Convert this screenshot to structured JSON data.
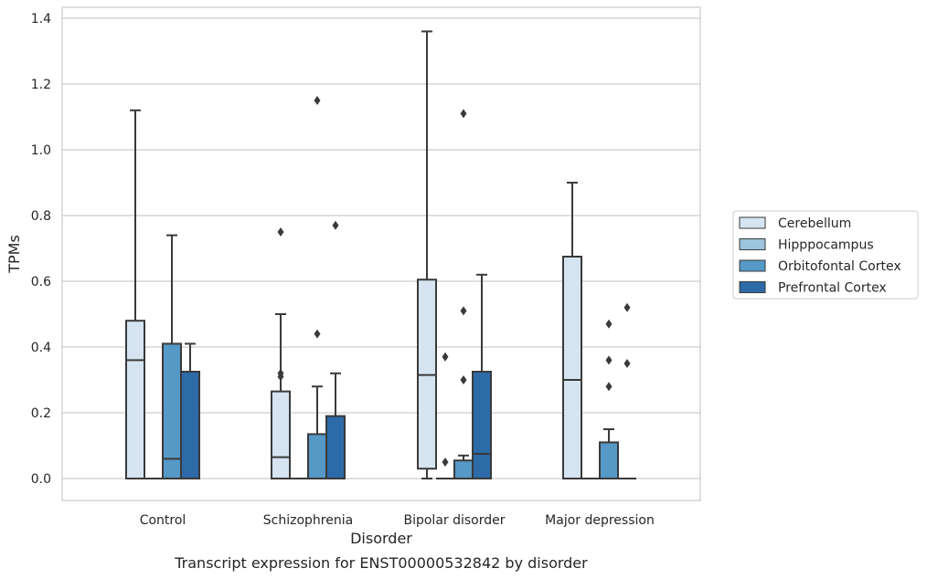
{
  "caption": "Transcript expression for ENST00000532842 by disorder",
  "chart_data": {
    "type": "box",
    "xlabel": "Disorder",
    "ylabel": "TPMs",
    "ylim": [
      -0.065,
      1.44
    ],
    "yticks": [
      0.0,
      0.2,
      0.4,
      0.6,
      0.8,
      1.0,
      1.2,
      1.4
    ],
    "ytick_labels": [
      "0.0",
      "0.2",
      "0.4",
      "0.6",
      "0.8",
      "1.0",
      "1.2",
      "1.4"
    ],
    "grid": true,
    "legend_position": "right",
    "categories": [
      "Control",
      "Schizophrenia",
      "Bipolar disorder",
      "Major depression"
    ],
    "series": [
      {
        "name": "Cerebellum",
        "color": "#d6e4f1",
        "boxes": [
          {
            "whislo": 0.0,
            "q1": 0.0,
            "med": 0.36,
            "q3": 0.48,
            "whishi": 1.12,
            "fliers": []
          },
          {
            "whislo": 0.0,
            "q1": 0.0,
            "med": 0.065,
            "q3": 0.265,
            "whishi": 0.5,
            "fliers": [
              0.75,
              0.32,
              0.31
            ]
          },
          {
            "whislo": 0.0,
            "q1": 0.03,
            "med": 0.315,
            "q3": 0.605,
            "whishi": 1.36,
            "fliers": []
          },
          {
            "whislo": 0.0,
            "q1": 0.0,
            "med": 0.3,
            "q3": 0.675,
            "whishi": 0.9,
            "fliers": []
          }
        ]
      },
      {
        "name": "Hipppocampus",
        "color": "#9cc4dd",
        "boxes": [
          {
            "whislo": 0.0,
            "q1": 0.0,
            "med": 0.0,
            "q3": 0.0,
            "whishi": 0.0,
            "fliers": []
          },
          {
            "whislo": 0.0,
            "q1": 0.0,
            "med": 0.0,
            "q3": 0.0,
            "whishi": 0.0,
            "fliers": []
          },
          {
            "whislo": 0.0,
            "q1": 0.0,
            "med": 0.0,
            "q3": 0.0,
            "whishi": 0.0,
            "fliers": [
              0.05,
              0.37
            ]
          },
          {
            "whislo": 0.0,
            "q1": 0.0,
            "med": 0.0,
            "q3": 0.0,
            "whishi": 0.0,
            "fliers": []
          }
        ]
      },
      {
        "name": "Orbitofontal Cortex",
        "color": "#5698c6",
        "boxes": [
          {
            "whislo": 0.0,
            "q1": 0.0,
            "med": 0.06,
            "q3": 0.41,
            "whishi": 0.74,
            "fliers": []
          },
          {
            "whislo": 0.0,
            "q1": 0.0,
            "med": 0.0,
            "q3": 0.135,
            "whishi": 0.28,
            "fliers": [
              1.15,
              0.44
            ]
          },
          {
            "whislo": 0.0,
            "q1": 0.0,
            "med": 0.0,
            "q3": 0.055,
            "whishi": 0.07,
            "fliers": [
              1.11,
              0.51,
              0.3
            ]
          },
          {
            "whislo": 0.0,
            "q1": 0.0,
            "med": 0.0,
            "q3": 0.11,
            "whishi": 0.15,
            "fliers": [
              0.47,
              0.36,
              0.28
            ]
          }
        ]
      },
      {
        "name": "Prefrontal Cortex",
        "color": "#2d6aa8",
        "boxes": [
          {
            "whislo": 0.0,
            "q1": 0.0,
            "med": 0.0,
            "q3": 0.325,
            "whishi": 0.41,
            "fliers": []
          },
          {
            "whislo": 0.0,
            "q1": 0.0,
            "med": 0.0,
            "q3": 0.19,
            "whishi": 0.32,
            "fliers": [
              0.77
            ]
          },
          {
            "whislo": 0.0,
            "q1": 0.0,
            "med": 0.075,
            "q3": 0.325,
            "whishi": 0.62,
            "fliers": []
          },
          {
            "whislo": 0.0,
            "q1": 0.0,
            "med": 0.0,
            "q3": 0.0,
            "whishi": 0.0,
            "fliers": [
              0.52,
              0.35
            ]
          }
        ]
      }
    ]
  }
}
